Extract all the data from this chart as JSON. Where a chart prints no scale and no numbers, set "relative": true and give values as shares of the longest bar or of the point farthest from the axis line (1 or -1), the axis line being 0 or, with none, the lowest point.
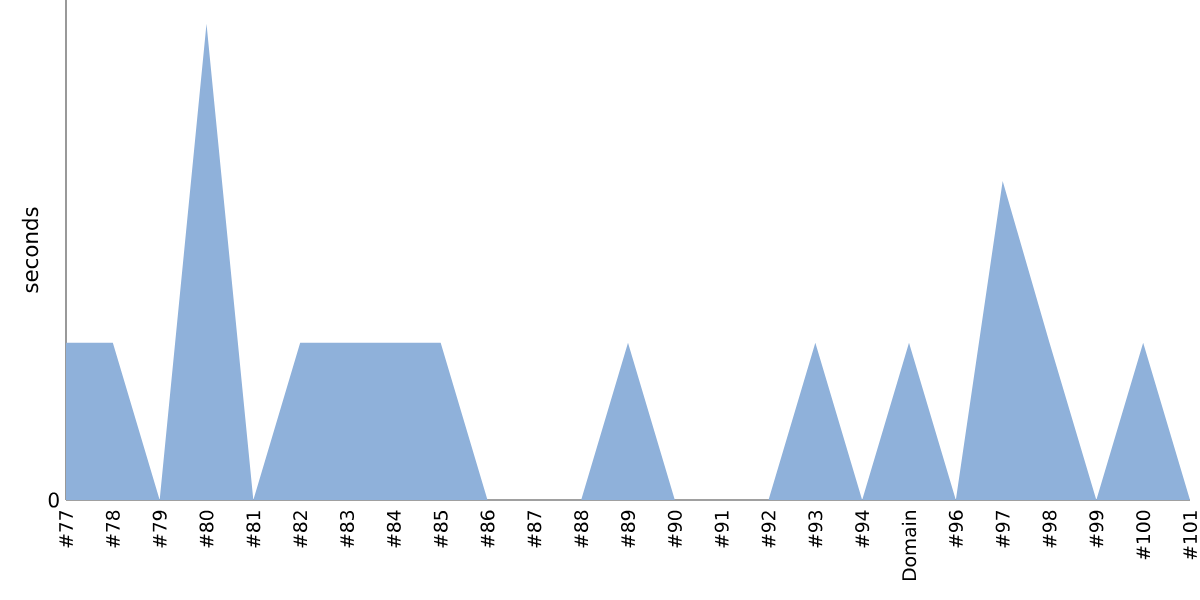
{
  "chart_data": {
    "type": "area",
    "ylabel": "seconds",
    "relative": true,
    "annotations": [
      "0"
    ],
    "color": "#8fb1da",
    "categories": [
      "#77",
      "#78",
      "#79",
      "#80",
      "#81",
      "#82",
      "#83",
      "#84",
      "#85",
      "#86",
      "#87",
      "#88",
      "#89",
      "#90",
      "#91",
      "#92",
      "#93",
      "#94",
      "Domain",
      "#96",
      "#97",
      "#98",
      "#99",
      "#100",
      "#101"
    ],
    "values": [
      0.33,
      0.33,
      0,
      1,
      0,
      0.33,
      0.33,
      0.33,
      0.33,
      0,
      0,
      0,
      0.33,
      0,
      0,
      0,
      0.33,
      0,
      0.33,
      0,
      0.67,
      0.33,
      0,
      0.33,
      0
    ]
  }
}
